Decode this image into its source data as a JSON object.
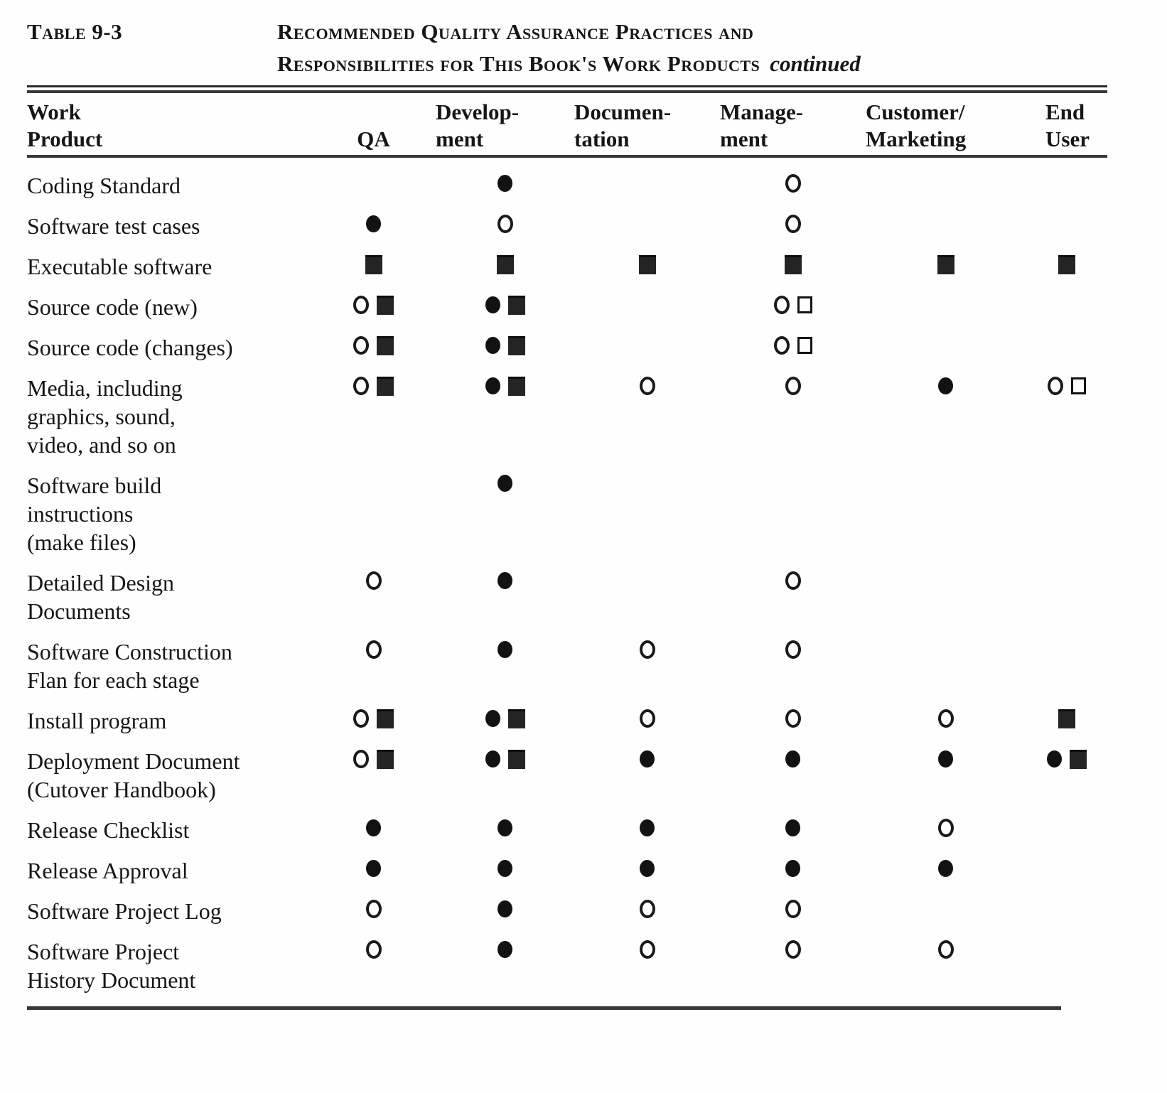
{
  "table_label": "Table 9-3",
  "title": {
    "line1": "Recommended Quality Assurance Practices and",
    "line2": "Responsibilities for This Book's Work Products",
    "continued": "continued"
  },
  "columns": [
    {
      "key": "work_product",
      "label_lines": [
        "Work",
        "Product"
      ]
    },
    {
      "key": "qa",
      "label_lines": [
        "QA"
      ]
    },
    {
      "key": "development",
      "label_lines": [
        "Develop-",
        "ment"
      ]
    },
    {
      "key": "documentation",
      "label_lines": [
        "Documen-",
        "tation"
      ]
    },
    {
      "key": "management",
      "label_lines": [
        "Manage-",
        "ment"
      ]
    },
    {
      "key": "customer_marketing",
      "label_lines": [
        "Customer/",
        "Marketing"
      ]
    },
    {
      "key": "end_user",
      "label_lines": [
        "End",
        "User"
      ]
    }
  ],
  "symbol_legend": {
    "filled-circle": "solid dot",
    "open-circle": "open dot",
    "filled-square": "solid square",
    "open-square": "open square"
  },
  "rows": [
    {
      "product_lines": [
        "Coding Standard"
      ],
      "qa": [],
      "development": [
        "filled-circle"
      ],
      "documentation": [],
      "management": [
        "open-circle"
      ],
      "customer_marketing": [],
      "end_user": []
    },
    {
      "product_lines": [
        "Software test cases"
      ],
      "qa": [
        "filled-circle"
      ],
      "development": [
        "open-circle"
      ],
      "documentation": [],
      "management": [
        "open-circle"
      ],
      "customer_marketing": [],
      "end_user": []
    },
    {
      "product_lines": [
        "Executable software"
      ],
      "qa": [
        "filled-square"
      ],
      "development": [
        "filled-square"
      ],
      "documentation": [
        "filled-square"
      ],
      "management": [
        "filled-square"
      ],
      "customer_marketing": [
        "filled-square"
      ],
      "end_user": [
        "filled-square"
      ]
    },
    {
      "product_lines": [
        "Source code (new)"
      ],
      "qa": [
        "open-circle",
        "filled-square"
      ],
      "development": [
        "filled-circle",
        "filled-square"
      ],
      "documentation": [],
      "management": [
        "open-circle",
        "open-square"
      ],
      "customer_marketing": [],
      "end_user": []
    },
    {
      "product_lines": [
        "Source code (changes)"
      ],
      "qa": [
        "open-circle",
        "filled-square"
      ],
      "development": [
        "filled-circle",
        "filled-square"
      ],
      "documentation": [],
      "management": [
        "open-circle",
        "open-square"
      ],
      "customer_marketing": [],
      "end_user": []
    },
    {
      "product_lines": [
        "Media, including",
        "graphics, sound,",
        "video, and so on"
      ],
      "qa": [
        "open-circle",
        "filled-square"
      ],
      "development": [
        "filled-circle",
        "filled-square"
      ],
      "documentation": [
        "open-circle"
      ],
      "management": [
        "open-circle"
      ],
      "customer_marketing": [
        "filled-circle"
      ],
      "end_user": [
        "open-circle",
        "open-square"
      ]
    },
    {
      "product_lines": [
        "Software build",
        "instructions",
        "(make files)"
      ],
      "qa": [],
      "development": [
        "filled-circle"
      ],
      "documentation": [],
      "management": [],
      "customer_marketing": [],
      "end_user": []
    },
    {
      "product_lines": [
        "Detailed Design",
        "Documents"
      ],
      "qa": [
        "open-circle"
      ],
      "development": [
        "filled-circle"
      ],
      "documentation": [],
      "management": [
        "open-circle"
      ],
      "customer_marketing": [],
      "end_user": []
    },
    {
      "product_lines": [
        "Software Construction",
        "Flan for each stage"
      ],
      "qa": [
        "open-circle"
      ],
      "development": [
        "filled-circle"
      ],
      "documentation": [
        "open-circle"
      ],
      "management": [
        "open-circle"
      ],
      "customer_marketing": [],
      "end_user": []
    },
    {
      "product_lines": [
        "Install program"
      ],
      "qa": [
        "open-circle",
        "filled-square"
      ],
      "development": [
        "filled-circle",
        "filled-square"
      ],
      "documentation": [
        "open-circle"
      ],
      "management": [
        "open-circle"
      ],
      "customer_marketing": [
        "open-circle"
      ],
      "end_user": [
        "filled-square"
      ]
    },
    {
      "product_lines": [
        "Deployment Document",
        "(Cutover Handbook)"
      ],
      "qa": [
        "open-circle",
        "filled-square"
      ],
      "development": [
        "filled-circle",
        "filled-square"
      ],
      "documentation": [
        "filled-circle"
      ],
      "management": [
        "filled-circle"
      ],
      "customer_marketing": [
        "filled-circle"
      ],
      "end_user": [
        "filled-circle",
        "filled-square"
      ]
    },
    {
      "product_lines": [
        "Release Checklist"
      ],
      "qa": [
        "filled-circle"
      ],
      "development": [
        "filled-circle"
      ],
      "documentation": [
        "filled-circle"
      ],
      "management": [
        "filled-circle"
      ],
      "customer_marketing": [
        "open-circle"
      ],
      "end_user": []
    },
    {
      "product_lines": [
        "Release Approval"
      ],
      "qa": [
        "filled-circle"
      ],
      "development": [
        "filled-circle"
      ],
      "documentation": [
        "filled-circle"
      ],
      "management": [
        "filled-circle"
      ],
      "customer_marketing": [
        "filled-circle"
      ],
      "end_user": []
    },
    {
      "product_lines": [
        "Software Project Log"
      ],
      "qa": [
        "open-circle"
      ],
      "development": [
        "filled-circle"
      ],
      "documentation": [
        "open-circle"
      ],
      "management": [
        "open-circle"
      ],
      "customer_marketing": [],
      "end_user": []
    },
    {
      "product_lines": [
        "Software Project",
        "History Document"
      ],
      "qa": [
        "open-circle"
      ],
      "development": [
        "filled-circle"
      ],
      "documentation": [
        "open-circle"
      ],
      "management": [
        "open-circle"
      ],
      "customer_marketing": [
        "open-circle"
      ],
      "end_user": []
    }
  ]
}
